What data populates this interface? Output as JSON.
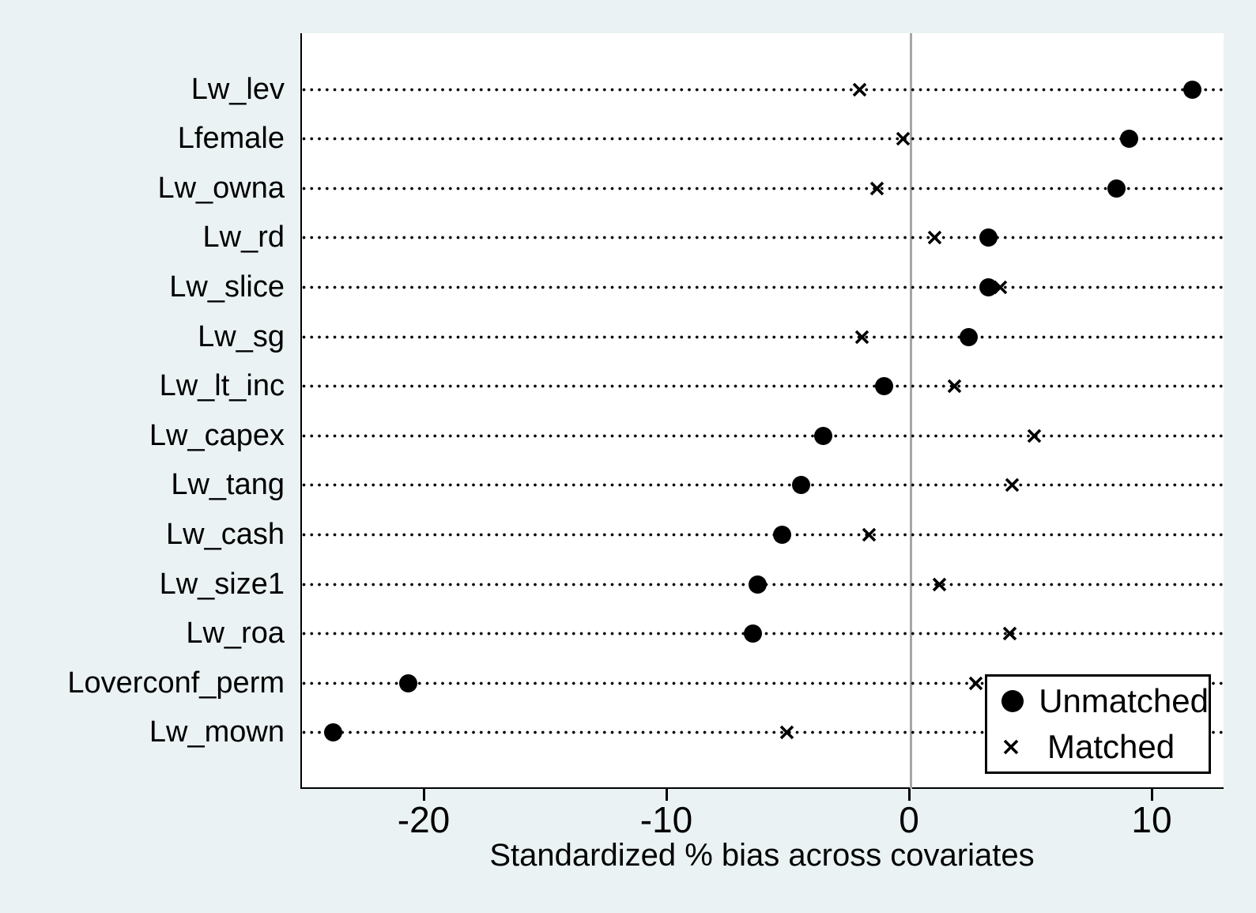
{
  "chart_data": {
    "type": "scatter",
    "title": "",
    "xlabel": "Standardized % bias across covariates",
    "ylabel": "",
    "x_ticks": [
      -20,
      -10,
      0,
      10
    ],
    "x_tick_labels": [
      "-20",
      "-10",
      "0",
      "10"
    ],
    "xlim": [
      -25.1,
      13.0
    ],
    "zero_reference_line": 0,
    "grid": "dotted horizontal row lines",
    "categories": [
      "Lw_lev",
      "Lfemale",
      "Lw_owna",
      "Lw_rd",
      "Lw_slice",
      "Lw_sg",
      "Lw_lt_inc",
      "Lw_capex",
      "Lw_tang",
      "Lw_cash",
      "Lw_size1",
      "Lw_roa",
      "Loverconf_perm",
      "Lw_mown"
    ],
    "series": [
      {
        "name": "Unmatched",
        "marker": "circle",
        "values": [
          11.6,
          9.0,
          8.5,
          3.2,
          3.2,
          2.4,
          -1.1,
          -3.6,
          -4.5,
          -5.3,
          -6.3,
          -6.5,
          -20.7,
          -23.8
        ]
      },
      {
        "name": "Matched",
        "marker": "x",
        "values": [
          -2.1,
          -0.3,
          -1.4,
          1.0,
          3.7,
          -2.0,
          1.8,
          5.1,
          4.2,
          -1.7,
          1.2,
          4.1,
          2.7,
          -5.1
        ]
      }
    ],
    "legend": {
      "position": "bottom-right",
      "items": [
        "Unmatched",
        "Matched"
      ]
    }
  },
  "colors": {
    "background": "#EAF2F3",
    "plot_background": "#FFFFFF",
    "marker": "#000000",
    "zero_line": "#A6A6A6",
    "axis": "#000000"
  }
}
